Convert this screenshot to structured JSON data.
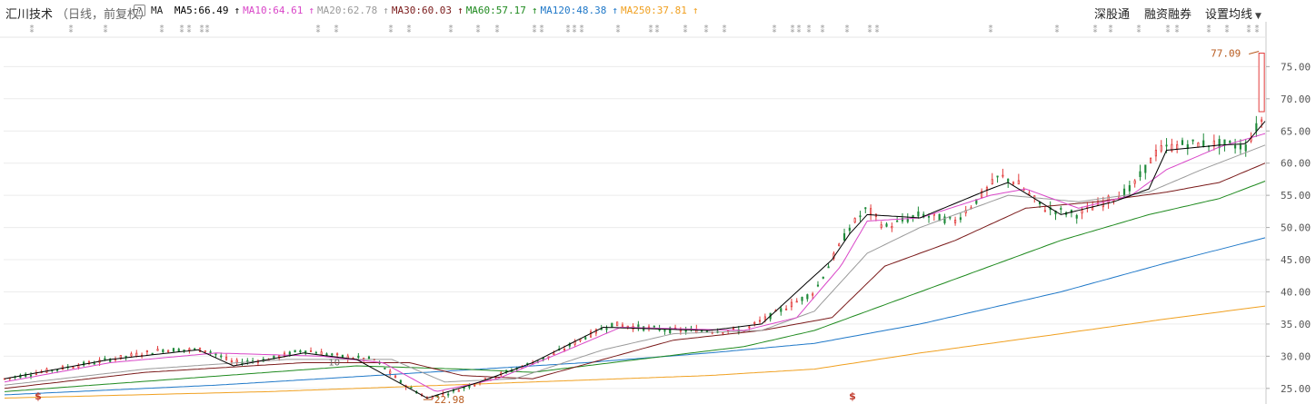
{
  "header": {
    "stock_name": "汇川技术",
    "mode": "（日线，前复权）",
    "help_label": "?",
    "ma_label": "MA"
  },
  "menu": {
    "shenggutong": "深股通",
    "rongzi": "融资融券",
    "settings": "设置均线"
  },
  "colors": {
    "up": "#e23a3a",
    "down": "#1f8a3a",
    "ma5": "#000000",
    "ma10": "#d946c8",
    "ma20": "#9a9a9a",
    "ma30": "#7a1a1a",
    "ma60": "#1f8a1f",
    "ma120": "#1f78c8",
    "ma250": "#f0a020"
  },
  "chart_data": {
    "type": "candlestick",
    "title": "汇川技术（日线，前复权）",
    "ylim": [
      23,
      79
    ],
    "yticks": [
      "75.00",
      "70.00",
      "65.00",
      "60.00",
      "55.00",
      "50.00",
      "45.00",
      "40.00",
      "35.00",
      "30.00",
      "25.00"
    ],
    "ytick_values": [
      75,
      70,
      65,
      60,
      55,
      50,
      45,
      40,
      35,
      30,
      25
    ],
    "grid": true,
    "series": [
      {
        "name": "MA5",
        "value": "66.49",
        "color_key": "ma5"
      },
      {
        "name": "MA10",
        "value": "64.61",
        "color_key": "ma10"
      },
      {
        "name": "MA20",
        "value": "62.78",
        "color_key": "ma20"
      },
      {
        "name": "MA30",
        "value": "60.03",
        "color_key": "ma30"
      },
      {
        "name": "MA60",
        "value": "57.17",
        "color_key": "ma60"
      },
      {
        "name": "MA120",
        "value": "48.38",
        "color_key": "ma120"
      },
      {
        "name": "MA250",
        "value": "37.81",
        "color_key": "ma250"
      }
    ],
    "annotations": {
      "max_label": "77.09",
      "max_value": 77.09,
      "min_label": "22.98",
      "min_value": 22.98,
      "min_note": "10"
    },
    "price_anchors": [
      [
        0,
        26.5
      ],
      [
        30,
        28
      ],
      [
        60,
        29.5
      ],
      [
        90,
        31
      ],
      [
        115,
        31
      ],
      [
        130,
        29
      ],
      [
        150,
        29.5
      ],
      [
        170,
        31
      ],
      [
        190,
        30
      ],
      [
        210,
        29.5
      ],
      [
        225,
        26
      ],
      [
        240,
        23.5
      ],
      [
        255,
        24.5
      ],
      [
        270,
        26
      ],
      [
        290,
        28
      ],
      [
        310,
        30
      ],
      [
        330,
        33
      ],
      [
        345,
        35
      ],
      [
        360,
        34.5
      ],
      [
        380,
        34
      ],
      [
        400,
        34
      ],
      [
        420,
        34
      ],
      [
        440,
        37
      ],
      [
        460,
        40
      ],
      [
        470,
        45
      ],
      [
        480,
        50
      ],
      [
        490,
        53
      ],
      [
        500,
        50
      ],
      [
        520,
        52
      ],
      [
        540,
        51
      ],
      [
        555,
        55
      ],
      [
        565,
        58
      ],
      [
        575,
        57
      ],
      [
        590,
        53
      ],
      [
        610,
        52
      ],
      [
        625,
        54
      ],
      [
        640,
        56
      ],
      [
        655,
        62
      ],
      [
        670,
        63
      ],
      [
        690,
        63
      ],
      [
        705,
        62.5
      ],
      [
        712,
        66
      ],
      [
        715,
        67
      ]
    ],
    "ma_anchors": {
      "ma5": [
        [
          0,
          26.5
        ],
        [
          60,
          29.5
        ],
        [
          110,
          31
        ],
        [
          130,
          28.5
        ],
        [
          170,
          30.5
        ],
        [
          200,
          29.5
        ],
        [
          240,
          23.5
        ],
        [
          270,
          26
        ],
        [
          300,
          29
        ],
        [
          340,
          34.5
        ],
        [
          400,
          34
        ],
        [
          430,
          35
        ],
        [
          470,
          45
        ],
        [
          480,
          49
        ],
        [
          490,
          52
        ],
        [
          520,
          51.5
        ],
        [
          560,
          56
        ],
        [
          570,
          57
        ],
        [
          600,
          52
        ],
        [
          630,
          54
        ],
        [
          650,
          56
        ],
        [
          660,
          62
        ],
        [
          690,
          62.8
        ],
        [
          705,
          63
        ],
        [
          716,
          66.5
        ]
      ],
      "ma10": [
        [
          0,
          26
        ],
        [
          60,
          29
        ],
        [
          120,
          30.5
        ],
        [
          180,
          30
        ],
        [
          215,
          29
        ],
        [
          245,
          24.5
        ],
        [
          280,
          26.5
        ],
        [
          320,
          31
        ],
        [
          350,
          34.5
        ],
        [
          420,
          34
        ],
        [
          450,
          36
        ],
        [
          475,
          44
        ],
        [
          490,
          51
        ],
        [
          520,
          51.5
        ],
        [
          560,
          55
        ],
        [
          580,
          56
        ],
        [
          610,
          53
        ],
        [
          640,
          55
        ],
        [
          660,
          59
        ],
        [
          690,
          62.5
        ],
        [
          716,
          64.6
        ]
      ],
      "ma20": [
        [
          0,
          25.5
        ],
        [
          80,
          28
        ],
        [
          160,
          29.5
        ],
        [
          220,
          29.5
        ],
        [
          250,
          26
        ],
        [
          290,
          26.5
        ],
        [
          340,
          31
        ],
        [
          380,
          33.5
        ],
        [
          430,
          34
        ],
        [
          460,
          37
        ],
        [
          490,
          46
        ],
        [
          520,
          50
        ],
        [
          570,
          55
        ],
        [
          610,
          54
        ],
        [
          650,
          55.5
        ],
        [
          680,
          59
        ],
        [
          716,
          62.8
        ]
      ],
      "ma30": [
        [
          0,
          25
        ],
        [
          80,
          27.5
        ],
        [
          170,
          29
        ],
        [
          230,
          29
        ],
        [
          260,
          27
        ],
        [
          300,
          26.5
        ],
        [
          340,
          29.5
        ],
        [
          380,
          32.5
        ],
        [
          430,
          34
        ],
        [
          470,
          36
        ],
        [
          500,
          44
        ],
        [
          540,
          48
        ],
        [
          580,
          53
        ],
        [
          620,
          54
        ],
        [
          660,
          55.5
        ],
        [
          690,
          57
        ],
        [
          716,
          60
        ]
      ],
      "ma60": [
        [
          0,
          24.5
        ],
        [
          100,
          26.5
        ],
        [
          200,
          28.5
        ],
        [
          260,
          28
        ],
        [
          300,
          27.5
        ],
        [
          360,
          29.5
        ],
        [
          420,
          31.5
        ],
        [
          460,
          34
        ],
        [
          500,
          38
        ],
        [
          550,
          43
        ],
        [
          600,
          48
        ],
        [
          650,
          52
        ],
        [
          690,
          54.5
        ],
        [
          716,
          57.2
        ]
      ],
      "ma120": [
        [
          0,
          24
        ],
        [
          120,
          25.5
        ],
        [
          240,
          27.5
        ],
        [
          330,
          29
        ],
        [
          400,
          30.5
        ],
        [
          460,
          32
        ],
        [
          520,
          35
        ],
        [
          600,
          40
        ],
        [
          660,
          44.5
        ],
        [
          716,
          48.4
        ]
      ],
      "ma250": [
        [
          0,
          23.5
        ],
        [
          150,
          24.5
        ],
        [
          300,
          26
        ],
        [
          400,
          27
        ],
        [
          460,
          28
        ],
        [
          520,
          30.5
        ],
        [
          600,
          33.5
        ],
        [
          660,
          35.8
        ],
        [
          716,
          37.8
        ]
      ]
    },
    "event_markers": {
      "top_symbol": "⁑",
      "bottom_symbol": "$"
    }
  }
}
